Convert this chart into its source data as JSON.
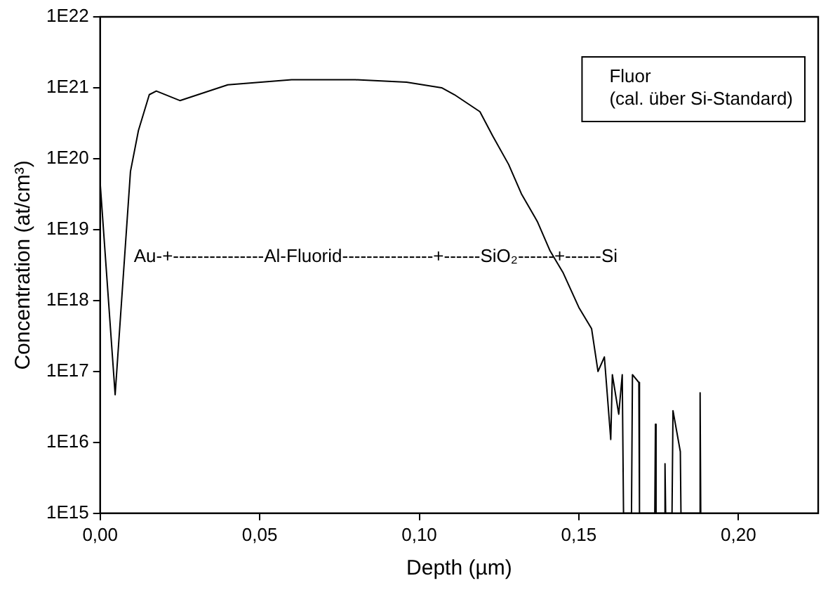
{
  "chart_data": {
    "type": "line",
    "xlabel": "Depth (µm)",
    "ylabel": "Concentration (at/cm³)",
    "series": [
      {
        "name": "Fluor\n(cal. über Si-Standard)",
        "color": "#000000",
        "x": [
          0,
          0.0047,
          0.0095,
          0.012,
          0.0154,
          0.0176,
          0.025,
          0.04,
          0.06,
          0.08,
          0.096,
          0.107,
          0.111,
          0.119,
          0.123,
          0.128,
          0.132,
          0.137,
          0.141,
          0.145,
          0.15,
          0.154,
          0.156,
          0.158,
          0.16,
          0.1605,
          0.1625,
          0.1636,
          0.164,
          0.1665,
          0.1668,
          0.1688,
          0.169,
          0.1738,
          0.174,
          0.1742,
          0.1768,
          0.177,
          0.1772,
          0.1792,
          0.1795,
          0.1818,
          0.182,
          0.1878,
          0.188,
          0.1882
        ],
        "values": [
          4.6e+19,
          4.7e+16,
          6.6e+19,
          2.5e+20,
          8e+20,
          9e+20,
          6.6e+20,
          1.1e+21,
          1.3e+21,
          1.3e+21,
          1.2e+21,
          1e+21,
          8e+20,
          4.6e+20,
          2.1e+20,
          8.3e+19,
          3.2e+19,
          1.3e+19,
          5e+18,
          2.5e+18,
          8e+17,
          4e+17,
          1e+17,
          1.6e+17,
          1.1e+16,
          9e+16,
          2.5e+16,
          9e+16,
          1000000000000000.0,
          1000000000000000.0,
          9e+16,
          7e+16,
          1000000000000000.0,
          1000000000000000.0,
          1.8e+16,
          1000000000000000.0,
          1000000000000000.0,
          5000000000000000.0,
          1000000000000000.0,
          1000000000000000.0,
          2.8e+16,
          7400000000000000.0,
          1000000000000000.0,
          1000000000000000.0,
          5e+16,
          1000000000000000.0
        ]
      }
    ],
    "log": "y",
    "grid": false,
    "legend": "top right",
    "marker": "none",
    "line_style": "solid",
    "xlim": [
      0,
      0.225
    ],
    "xticks": [
      {
        "value": 0,
        "label": "0,00"
      },
      {
        "value": 0.05,
        "label": "0,05"
      },
      {
        "value": 0.1,
        "label": "0,10"
      },
      {
        "value": 0.15,
        "label": "0,15"
      },
      {
        "value": 0.2,
        "label": "0,20"
      }
    ],
    "ylim": [
      1000000000000000.0,
      1e+22
    ],
    "yticks": [
      {
        "value": 1000000000000000.0,
        "label": "1E15"
      },
      {
        "value": 1e+16,
        "label": "1E16"
      },
      {
        "value": 1e+17,
        "label": "1E17"
      },
      {
        "value": 1e+18,
        "label": "1E18"
      },
      {
        "value": 1e+19,
        "label": "1E19"
      },
      {
        "value": 1e+20,
        "label": "1E20"
      },
      {
        "value": 1e+21,
        "label": "1E21"
      },
      {
        "value": 1e+22,
        "label": "1E22"
      }
    ],
    "annotations": [
      "Au-+---------------Al-Fluorid---------------+------SiO₂------+------Si"
    ]
  }
}
